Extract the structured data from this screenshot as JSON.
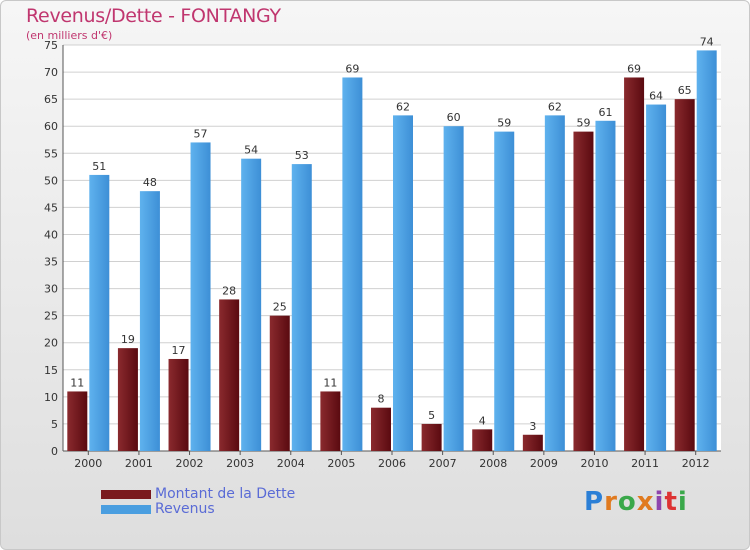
{
  "chart_data": {
    "type": "bar",
    "title": "Revenus/Dette - FONTANGY",
    "subtitle": "(en milliers d'€)",
    "categories": [
      "2000",
      "2001",
      "2002",
      "2003",
      "2004",
      "2005",
      "2006",
      "2007",
      "2008",
      "2009",
      "2010",
      "2011",
      "2012"
    ],
    "series": [
      {
        "name": "Montant de la Dette",
        "color": "#7a1a1e",
        "values": [
          11,
          19,
          17,
          28,
          25,
          11,
          8,
          5,
          4,
          3,
          59,
          69,
          65
        ]
      },
      {
        "name": "Revenus",
        "color": "#4a9ee0",
        "values": [
          51,
          48,
          57,
          54,
          53,
          69,
          62,
          60,
          59,
          62,
          61,
          64,
          74
        ]
      }
    ],
    "ylim": [
      0,
      75
    ],
    "yticks": [
      0,
      5,
      10,
      15,
      20,
      25,
      30,
      35,
      40,
      45,
      50,
      55,
      60,
      65,
      70,
      75
    ],
    "grid": true,
    "legend_position": "bottom-left"
  },
  "logo": {
    "letters": [
      "P",
      "r",
      "o",
      "x",
      "i",
      "t",
      "i"
    ],
    "colors": [
      "#2b7fd6",
      "#e07a1f",
      "#3aa84a",
      "#e07a1f",
      "#8e44ad",
      "#d33",
      "#3aa84a"
    ]
  }
}
